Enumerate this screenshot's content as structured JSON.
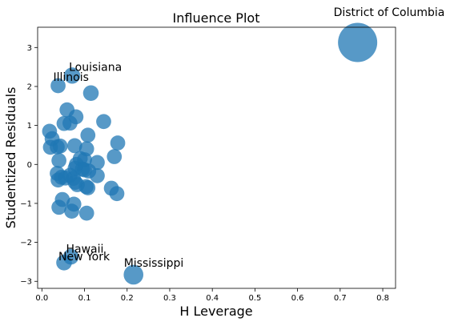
{
  "chart_data": {
    "type": "scatter",
    "title": "Influence Plot",
    "xlabel": "H Leverage",
    "ylabel": "Studentized Residuals",
    "xlim": [
      -0.01,
      0.83
    ],
    "ylim": [
      -3.18,
      3.52
    ],
    "xticks": [
      0.0,
      0.1,
      0.2,
      0.3,
      0.4,
      0.5,
      0.6,
      0.7,
      0.8
    ],
    "xtick_labels": [
      "0.0",
      "0.1",
      "0.2",
      "0.3",
      "0.4",
      "0.5",
      "0.6",
      "0.7",
      "0.8"
    ],
    "yticks": [
      -3,
      -2,
      -1,
      0,
      1,
      2,
      3
    ],
    "ytick_labels": [
      "−3",
      "−2",
      "−1",
      "0",
      "1",
      "2",
      "3"
    ],
    "grid": false,
    "legend": "none",
    "marker_color": "#1f77b4",
    "marker_alpha": 0.75,
    "note_on_size": "marker size encodes influence (Cook's distance)",
    "points": [
      {
        "x": 0.741,
        "y": 3.13,
        "influence": 1.0,
        "label": "District of Columbia"
      },
      {
        "x": 0.215,
        "y": -2.83,
        "influence": 0.14,
        "label": "Mississippi"
      },
      {
        "x": 0.071,
        "y": 2.28,
        "influence": 0.07,
        "label": "Louisiana"
      },
      {
        "x": 0.038,
        "y": 2.02,
        "influence": 0.05,
        "label": "Illinois"
      },
      {
        "x": 0.068,
        "y": -2.37,
        "influence": 0.06,
        "label": "Hawaii"
      },
      {
        "x": 0.052,
        "y": -2.52,
        "influence": 0.06,
        "label": "New York"
      },
      {
        "x": 0.115,
        "y": 1.83,
        "influence": 0.06
      },
      {
        "x": 0.059,
        "y": 1.4,
        "influence": 0.05
      },
      {
        "x": 0.08,
        "y": 1.22,
        "influence": 0.05
      },
      {
        "x": 0.145,
        "y": 1.1,
        "influence": 0.05
      },
      {
        "x": 0.052,
        "y": 1.05,
        "influence": 0.05
      },
      {
        "x": 0.066,
        "y": 1.06,
        "influence": 0.05
      },
      {
        "x": 0.018,
        "y": 0.85,
        "influence": 0.05
      },
      {
        "x": 0.108,
        "y": 0.75,
        "influence": 0.05
      },
      {
        "x": 0.024,
        "y": 0.66,
        "influence": 0.05
      },
      {
        "x": 0.178,
        "y": 0.55,
        "influence": 0.05
      },
      {
        "x": 0.02,
        "y": 0.44,
        "influence": 0.05
      },
      {
        "x": 0.036,
        "y": 0.45,
        "influence": 0.05
      },
      {
        "x": 0.043,
        "y": 0.47,
        "influence": 0.05
      },
      {
        "x": 0.077,
        "y": 0.48,
        "influence": 0.05
      },
      {
        "x": 0.105,
        "y": 0.4,
        "influence": 0.05
      },
      {
        "x": 0.17,
        "y": 0.2,
        "influence": 0.05
      },
      {
        "x": 0.09,
        "y": 0.15,
        "influence": 0.05
      },
      {
        "x": 0.1,
        "y": 0.12,
        "influence": 0.05
      },
      {
        "x": 0.04,
        "y": 0.1,
        "influence": 0.05
      },
      {
        "x": 0.13,
        "y": 0.05,
        "influence": 0.05
      },
      {
        "x": 0.081,
        "y": 0.0,
        "influence": 0.05
      },
      {
        "x": 0.078,
        "y": -0.1,
        "influence": 0.05
      },
      {
        "x": 0.095,
        "y": -0.12,
        "influence": 0.05
      },
      {
        "x": 0.1,
        "y": -0.14,
        "influence": 0.05
      },
      {
        "x": 0.11,
        "y": -0.17,
        "influence": 0.05
      },
      {
        "x": 0.036,
        "y": -0.23,
        "influence": 0.05
      },
      {
        "x": 0.066,
        "y": -0.28,
        "influence": 0.05
      },
      {
        "x": 0.13,
        "y": -0.29,
        "influence": 0.05
      },
      {
        "x": 0.046,
        "y": -0.33,
        "influence": 0.05
      },
      {
        "x": 0.055,
        "y": -0.35,
        "influence": 0.05
      },
      {
        "x": 0.074,
        "y": -0.36,
        "influence": 0.05
      },
      {
        "x": 0.038,
        "y": -0.4,
        "influence": 0.05
      },
      {
        "x": 0.078,
        "y": -0.46,
        "influence": 0.05
      },
      {
        "x": 0.083,
        "y": -0.52,
        "influence": 0.05
      },
      {
        "x": 0.104,
        "y": -0.57,
        "influence": 0.05
      },
      {
        "x": 0.108,
        "y": -0.6,
        "influence": 0.05
      },
      {
        "x": 0.163,
        "y": -0.61,
        "influence": 0.05
      },
      {
        "x": 0.176,
        "y": -0.75,
        "influence": 0.05
      },
      {
        "x": 0.048,
        "y": -0.9,
        "influence": 0.05
      },
      {
        "x": 0.075,
        "y": -1.02,
        "influence": 0.05
      },
      {
        "x": 0.04,
        "y": -1.1,
        "influence": 0.05
      },
      {
        "x": 0.07,
        "y": -1.2,
        "influence": 0.05
      },
      {
        "x": 0.105,
        "y": -1.25,
        "influence": 0.05
      }
    ]
  }
}
